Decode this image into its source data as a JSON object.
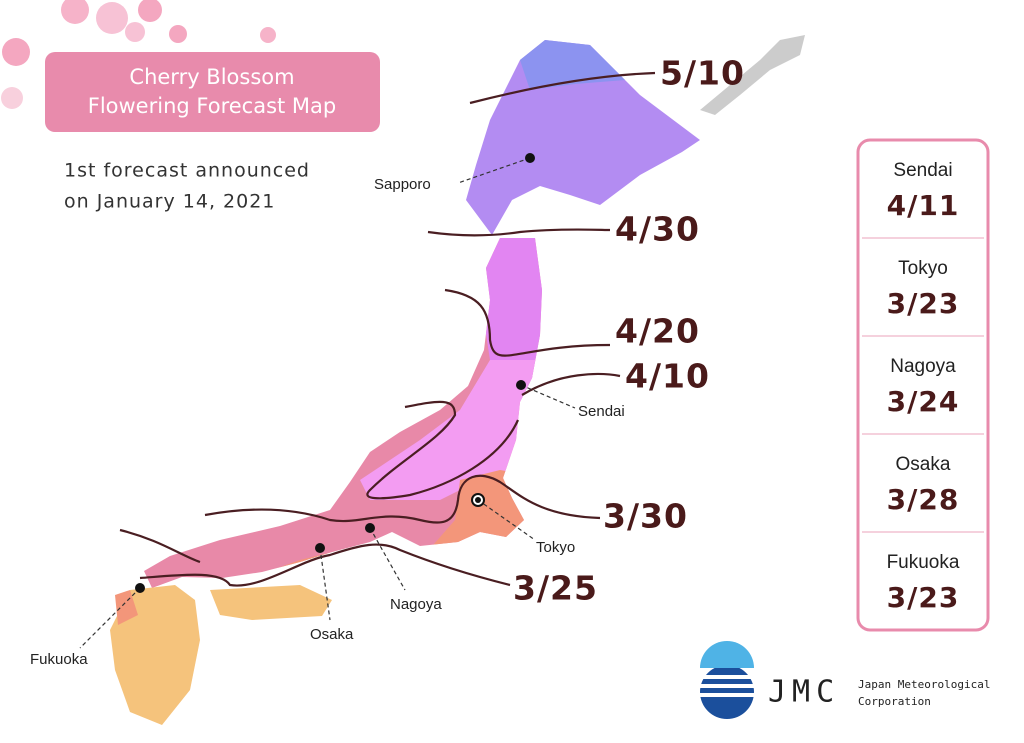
{
  "title": [
    "Cherry Blossom",
    "Flowering Forecast Map"
  ],
  "subtitle": [
    "1st forecast announced",
    "on January 14, 2021"
  ],
  "isolines": [
    "5/10",
    "4/30",
    "4/20",
    "4/10",
    "3/30",
    "3/25"
  ],
  "cities": [
    "Sapporo",
    "Sendai",
    "Tokyo",
    "Nagoya",
    "Osaka",
    "Fukuoka"
  ],
  "forecast_table": [
    {
      "city": "Sendai",
      "date": "4/11"
    },
    {
      "city": "Tokyo",
      "date": "3/23"
    },
    {
      "city": "Nagoya",
      "date": "3/24"
    },
    {
      "city": "Osaka",
      "date": "3/28"
    },
    {
      "city": "Fukuoka",
      "date": "3/23"
    }
  ],
  "logo": {
    "abbr": "JMC",
    "name": [
      "Japan Meteorological",
      "Corporation"
    ]
  }
}
